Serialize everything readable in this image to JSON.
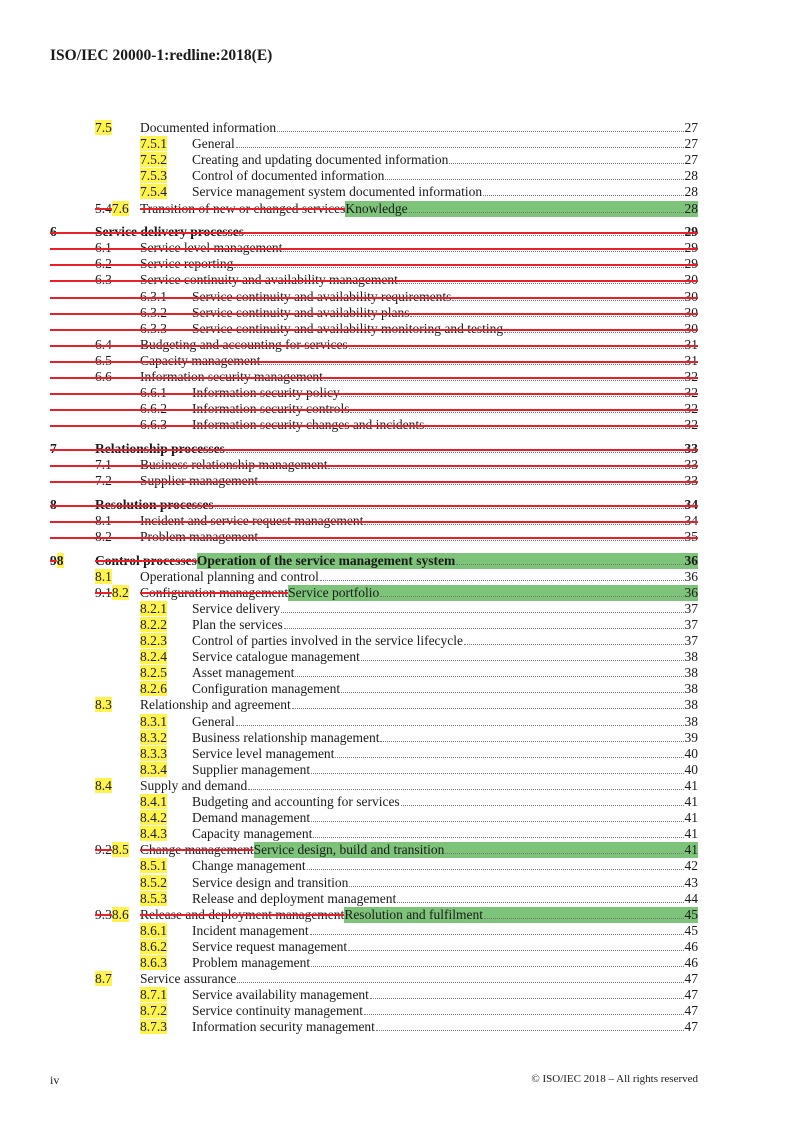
{
  "header": {
    "title": "ISO/IEC 20000-1:redline:2018(E)"
  },
  "footer": {
    "page": "iv",
    "copyright": "© ISO/IEC 2018 – All rights reserved"
  },
  "colors": {
    "insert_highlight": "#fff34d",
    "new_title_highlight": "#7dc47a",
    "deletion": "#e8202a"
  },
  "entries": [
    {
      "level": 2,
      "num": "7.5",
      "title": "Documented information",
      "page": "27",
      "new_num": true
    },
    {
      "level": 3,
      "num": "7.5.1",
      "title": "General",
      "page": "27",
      "new_num": true
    },
    {
      "level": 3,
      "num": "7.5.2",
      "title": "Creating and updating documented information",
      "page": "27",
      "new_num": true
    },
    {
      "level": 3,
      "num": "7.5.3",
      "title": "Control of documented information",
      "page": "28",
      "new_num": true
    },
    {
      "level": 3,
      "num": "7.5.4",
      "title": "Service management system documented information",
      "page": "28",
      "new_num": true
    },
    {
      "level": 2,
      "old_num": "5.4",
      "num": "7.6",
      "old_title": "Transition of new or changed services",
      "title": "Knowledge",
      "page": "28",
      "new_num": true,
      "green": true
    },
    {
      "level": 1,
      "num": "6",
      "title": "Service delivery processes",
      "page": "29",
      "deleted": true,
      "bold": true
    },
    {
      "level": 2,
      "num": "6.1",
      "title": "Service level management",
      "page": "29",
      "deleted": true
    },
    {
      "level": 2,
      "num": "6.2",
      "title": "Service reporting",
      "page": "29",
      "deleted": true
    },
    {
      "level": 2,
      "num": "6.3",
      "title": "Service continuity and availability management",
      "page": "30",
      "deleted": true
    },
    {
      "level": 3,
      "num": "6.3.1",
      "title": "Service continuity and availability requirements",
      "page": "30",
      "deleted": true
    },
    {
      "level": 3,
      "num": "6.3.2",
      "title": "Service continuity and availability plans",
      "page": "30",
      "deleted": true
    },
    {
      "level": 3,
      "num": "6.3.3",
      "title": "Service continuity and availability monitoring and testing",
      "page": "30",
      "deleted": true
    },
    {
      "level": 2,
      "num": "6.4",
      "title": "Budgeting and accounting for services",
      "page": "31",
      "deleted": true
    },
    {
      "level": 2,
      "num": "6.5",
      "title": "Capacity management",
      "page": "31",
      "deleted": true
    },
    {
      "level": 2,
      "num": "6.6",
      "title": "Information security management",
      "page": "32",
      "deleted": true
    },
    {
      "level": 3,
      "num": "6.6.1",
      "title": "Information security policy",
      "page": "32",
      "deleted": true
    },
    {
      "level": 3,
      "num": "6.6.2",
      "title": "Information security controls",
      "page": "32",
      "deleted": true
    },
    {
      "level": 3,
      "num": "6.6.3",
      "title": "Information security changes and incidents",
      "page": "32",
      "deleted": true
    },
    {
      "level": 1,
      "num": "7",
      "title": "Relationship processes",
      "page": "33",
      "deleted": true,
      "bold": true
    },
    {
      "level": 2,
      "num": "7.1",
      "title": "Business relationship management",
      "page": "33",
      "deleted": true
    },
    {
      "level": 2,
      "num": "7.2",
      "title": "Supplier management",
      "page": "33",
      "deleted": true
    },
    {
      "level": 1,
      "num": "8",
      "title": "Resolution processes",
      "page": "34",
      "deleted": true,
      "bold": true
    },
    {
      "level": 2,
      "num": "8.1",
      "title": "Incident and service request management",
      "page": "34",
      "deleted": true
    },
    {
      "level": 2,
      "num": "8.2",
      "title": "Problem management",
      "page": "35",
      "deleted": true
    },
    {
      "level": 1,
      "old_num": "9",
      "num": "8",
      "old_title": "Control processes",
      "title": "Operation of the service management system",
      "page": "36",
      "new_num": true,
      "green": true,
      "bold": true
    },
    {
      "level": 2,
      "num": "8.1",
      "title": "Operational planning and control",
      "page": "36",
      "new_num": true
    },
    {
      "level": 2,
      "old_num": "9.1",
      "num": "8.2",
      "old_title": "Configuration management",
      "title": "Service portfolio",
      "page": "36",
      "new_num": true,
      "green": true
    },
    {
      "level": 3,
      "num": "8.2.1",
      "title": "Service delivery",
      "page": "37",
      "new_num": true
    },
    {
      "level": 3,
      "num": "8.2.2",
      "title": "Plan the services",
      "page": "37",
      "new_num": true
    },
    {
      "level": 3,
      "num": "8.2.3",
      "title": "Control of parties involved in the service lifecycle",
      "page": "37",
      "new_num": true
    },
    {
      "level": 3,
      "num": "8.2.4",
      "title": "Service catalogue management",
      "page": "38",
      "new_num": true
    },
    {
      "level": 3,
      "num": "8.2.5",
      "title": "Asset management",
      "page": "38",
      "new_num": true
    },
    {
      "level": 3,
      "num": "8.2.6",
      "title": "Configuration management",
      "page": "38",
      "new_num": true
    },
    {
      "level": 2,
      "num": "8.3",
      "title": "Relationship and agreement",
      "page": "38",
      "new_num": true
    },
    {
      "level": 3,
      "num": "8.3.1",
      "title": "General",
      "page": "38",
      "new_num": true
    },
    {
      "level": 3,
      "num": "8.3.2",
      "title": "Business relationship management",
      "page": "39",
      "new_num": true
    },
    {
      "level": 3,
      "num": "8.3.3",
      "title": "Service level management",
      "page": "40",
      "new_num": true
    },
    {
      "level": 3,
      "num": "8.3.4",
      "title": "Supplier management",
      "page": "40",
      "new_num": true
    },
    {
      "level": 2,
      "num": "8.4",
      "title": "Supply and demand",
      "page": "41",
      "new_num": true
    },
    {
      "level": 3,
      "num": "8.4.1",
      "title": "Budgeting and accounting for services",
      "page": "41",
      "new_num": true
    },
    {
      "level": 3,
      "num": "8.4.2",
      "title": "Demand management",
      "page": "41",
      "new_num": true
    },
    {
      "level": 3,
      "num": "8.4.3",
      "title": "Capacity management",
      "page": "41",
      "new_num": true
    },
    {
      "level": 2,
      "old_num": "9.2",
      "num": "8.5",
      "old_title": "Change management",
      "title": "Service design, build and transition",
      "page": "41",
      "new_num": true,
      "green": true
    },
    {
      "level": 3,
      "num": "8.5.1",
      "title": "Change management",
      "page": "42",
      "new_num": true
    },
    {
      "level": 3,
      "num": "8.5.2",
      "title": "Service design and transition",
      "page": "43",
      "new_num": true
    },
    {
      "level": 3,
      "num": "8.5.3",
      "title": "Release and deployment management",
      "page": "44",
      "new_num": true
    },
    {
      "level": 2,
      "old_num": "9.3",
      "num": "8.6",
      "old_title": "Release and deployment management",
      "title": "Resolution and fulfilment",
      "page": "45",
      "new_num": true,
      "green": true
    },
    {
      "level": 3,
      "num": "8.6.1",
      "title": "Incident management",
      "page": "45",
      "new_num": true
    },
    {
      "level": 3,
      "num": "8.6.2",
      "title": "Service request management",
      "page": "46",
      "new_num": true
    },
    {
      "level": 3,
      "num": "8.6.3",
      "title": "Problem management",
      "page": "46",
      "new_num": true
    },
    {
      "level": 2,
      "num": "8.7",
      "title": "Service assurance",
      "page": "47",
      "new_num": true
    },
    {
      "level": 3,
      "num": "8.7.1",
      "title": "Service availability management",
      "page": "47",
      "new_num": true
    },
    {
      "level": 3,
      "num": "8.7.2",
      "title": "Service continuity management",
      "page": "47",
      "new_num": true
    },
    {
      "level": 3,
      "num": "8.7.3",
      "title": "Information security management",
      "page": "47",
      "new_num": true
    }
  ]
}
